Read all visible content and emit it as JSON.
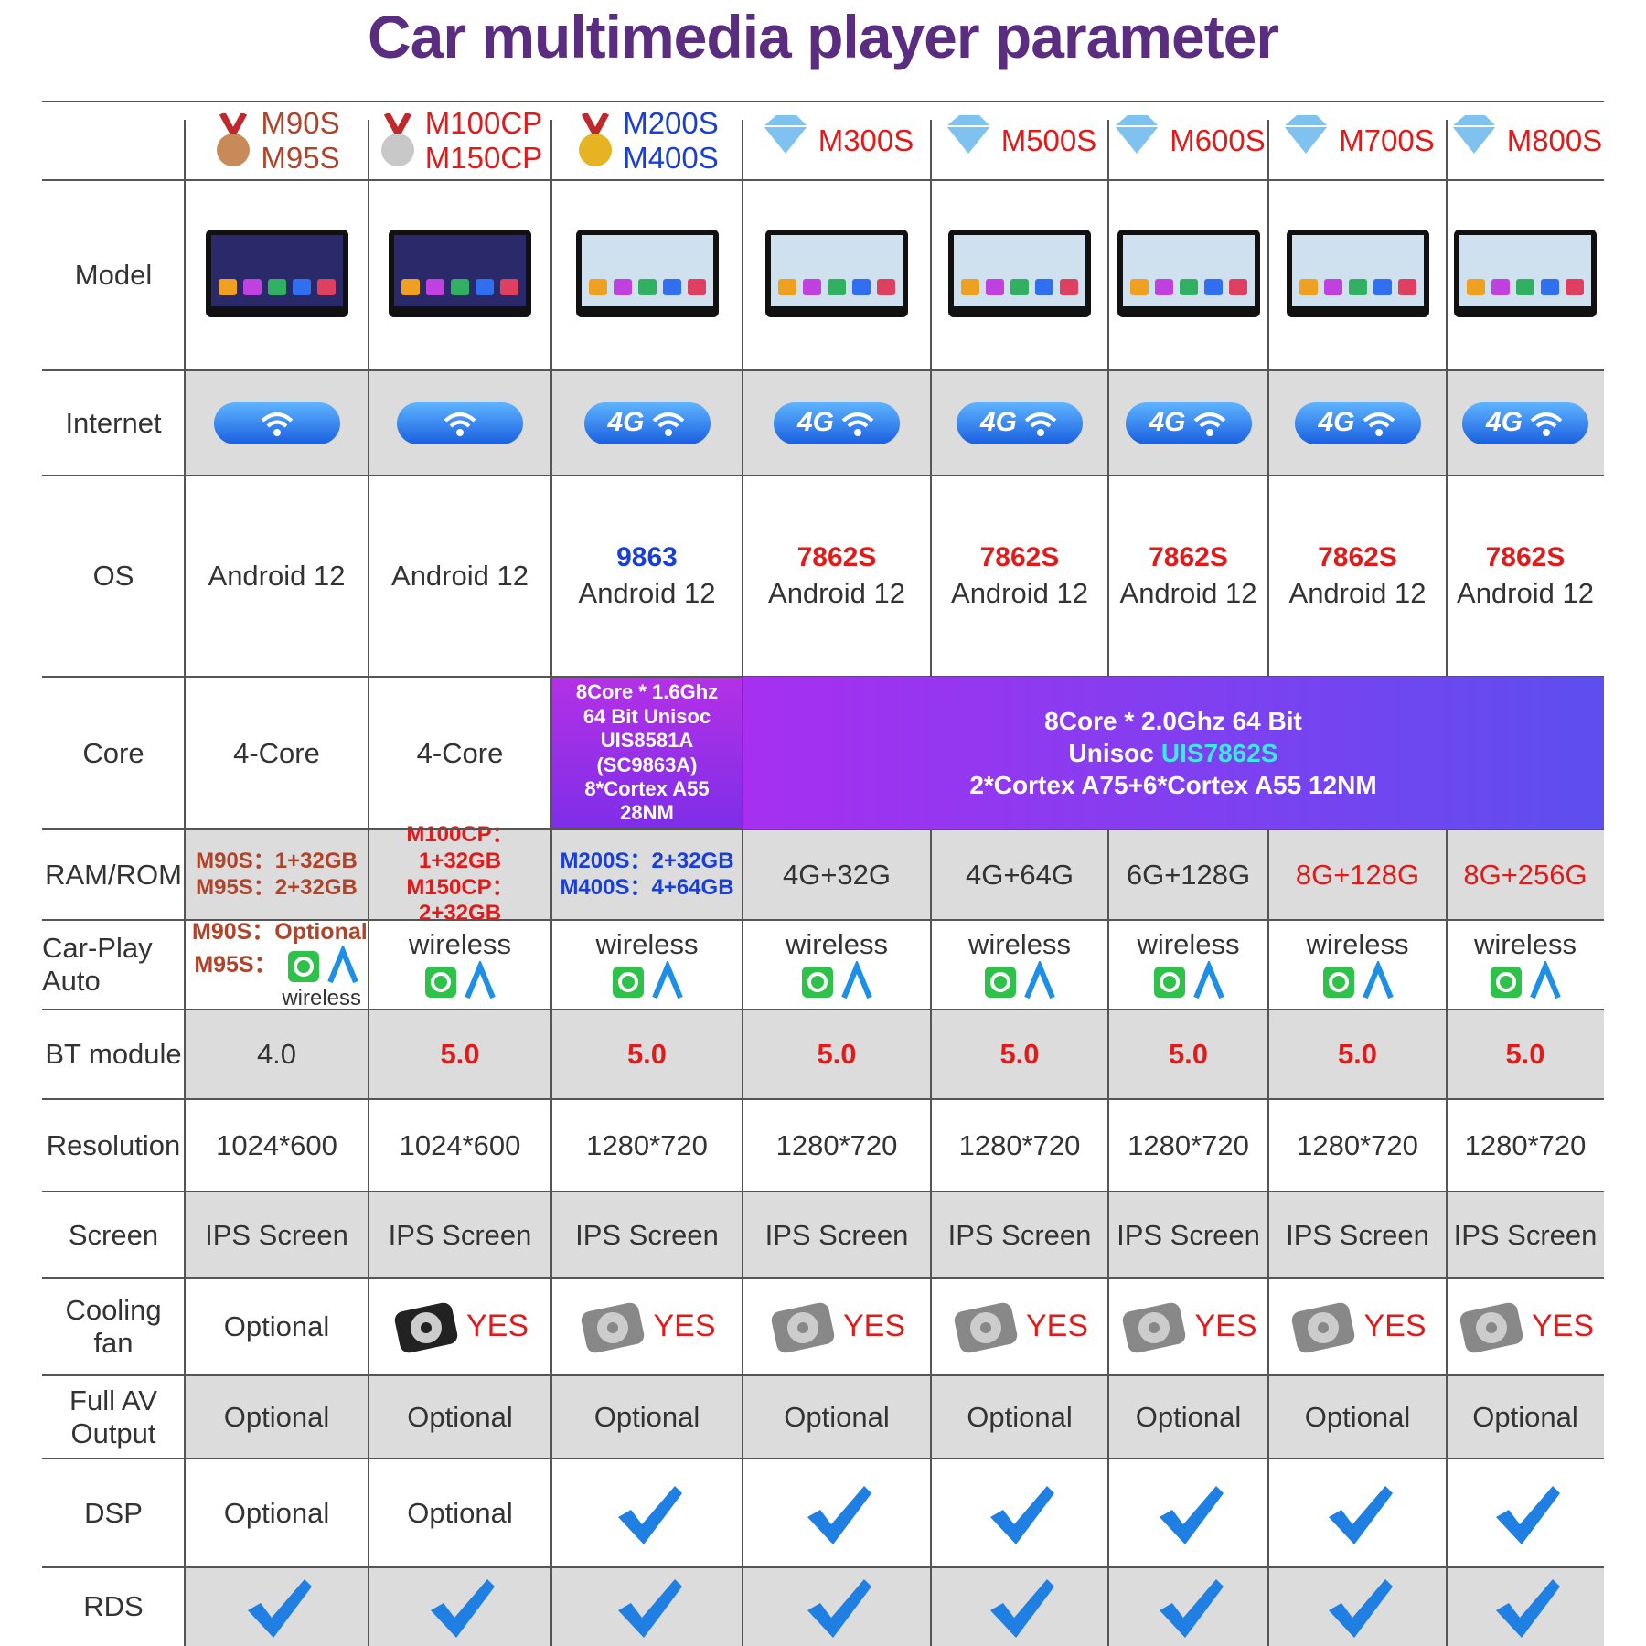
{
  "title": "Car multimedia player parameter",
  "columns": [
    [
      "M90S",
      "M95S"
    ],
    [
      "M100CP",
      "M150CP"
    ],
    [
      "M200S",
      "M400S"
    ],
    [
      "M300S"
    ],
    [
      "M500S"
    ],
    [
      "M600S"
    ],
    [
      "M700S"
    ],
    [
      "M800S"
    ]
  ],
  "rows": {
    "model": {
      "label": [
        "Model"
      ]
    },
    "internet": {
      "label": [
        "Internet"
      ],
      "cells": [
        null,
        null,
        "4G",
        "4G",
        "4G",
        "4G",
        "4G",
        "4G"
      ]
    },
    "os": {
      "label": [
        "OS"
      ],
      "chips": [
        null,
        null,
        "9863",
        "7862S",
        "7862S",
        "7862S",
        "7862S",
        "7862S"
      ],
      "cells": [
        "Android 12",
        "Android 12",
        "Android 12",
        "Android 12",
        "Android 12",
        "Android 12",
        "Android 12",
        "Android 12"
      ]
    },
    "core": {
      "label": [
        "Core"
      ],
      "cells": [
        "4-Core",
        "4-Core"
      ],
      "c3": [
        "8Core * 1.6Ghz",
        "64 Bit Unisoc",
        "UIS8581A",
        "(SC9863A)",
        "8*Cortex A55",
        "28NM"
      ],
      "span": [
        "8Core * 2.0Ghz 64 Bit",
        "Unisoc",
        "UIS7862S",
        "2*Cortex A75+6*Cortex A55 12NM"
      ]
    },
    "ram": {
      "label": [
        "RAM/ROM"
      ],
      "cells": [
        [
          "M90S：1+32GB",
          "M95S：2+32GB"
        ],
        [
          "M100CP：1+32GB",
          "M150CP：2+32GB"
        ],
        [
          "M200S：2+32GB",
          "M400S：4+64GB"
        ],
        [
          "4G+32G"
        ],
        [
          "4G+64G"
        ],
        [
          "6G+128G"
        ],
        [
          "8G+128G"
        ],
        [
          "8G+256G"
        ]
      ]
    },
    "carplay": {
      "label": [
        "Car-Play",
        "Auto"
      ],
      "first": [
        "M90S：Optional",
        "M95S："
      ],
      "cells": [
        "wireless",
        "wireless",
        "wireless",
        "wireless",
        "wireless",
        "wireless",
        "wireless",
        "wireless"
      ]
    },
    "bt": {
      "label": [
        "BT module"
      ],
      "cells": [
        "4.0",
        "5.0",
        "5.0",
        "5.0",
        "5.0",
        "5.0",
        "5.0",
        "5.0"
      ]
    },
    "resolution": {
      "label": [
        "Resolution"
      ],
      "cells": [
        "1024*600",
        "1024*600",
        "1280*720",
        "1280*720",
        "1280*720",
        "1280*720",
        "1280*720",
        "1280*720"
      ]
    },
    "screen": {
      "label": [
        "Screen"
      ],
      "cells": [
        "IPS Screen",
        "IPS Screen",
        "IPS Screen",
        "IPS Screen",
        "IPS Screen",
        "IPS Screen",
        "IPS Screen",
        "IPS Screen"
      ]
    },
    "fan": {
      "label": [
        "Cooling fan"
      ],
      "cells": [
        "Optional",
        "YES",
        "YES",
        "YES",
        "YES",
        "YES",
        "YES",
        "YES"
      ]
    },
    "av": {
      "label": [
        "Full AV",
        "Output"
      ],
      "cells": [
        "Optional",
        "Optional",
        "Optional",
        "Optional",
        "Optional",
        "Optional",
        "Optional",
        "Optional"
      ]
    },
    "dsp": {
      "label": [
        "DSP"
      ],
      "cells": [
        "Optional",
        "Optional",
        true,
        true,
        true,
        true,
        true,
        true
      ]
    },
    "rds": {
      "label": [
        "RDS"
      ],
      "cells": [
        true,
        true,
        true,
        true,
        true,
        true,
        true,
        true
      ]
    }
  }
}
